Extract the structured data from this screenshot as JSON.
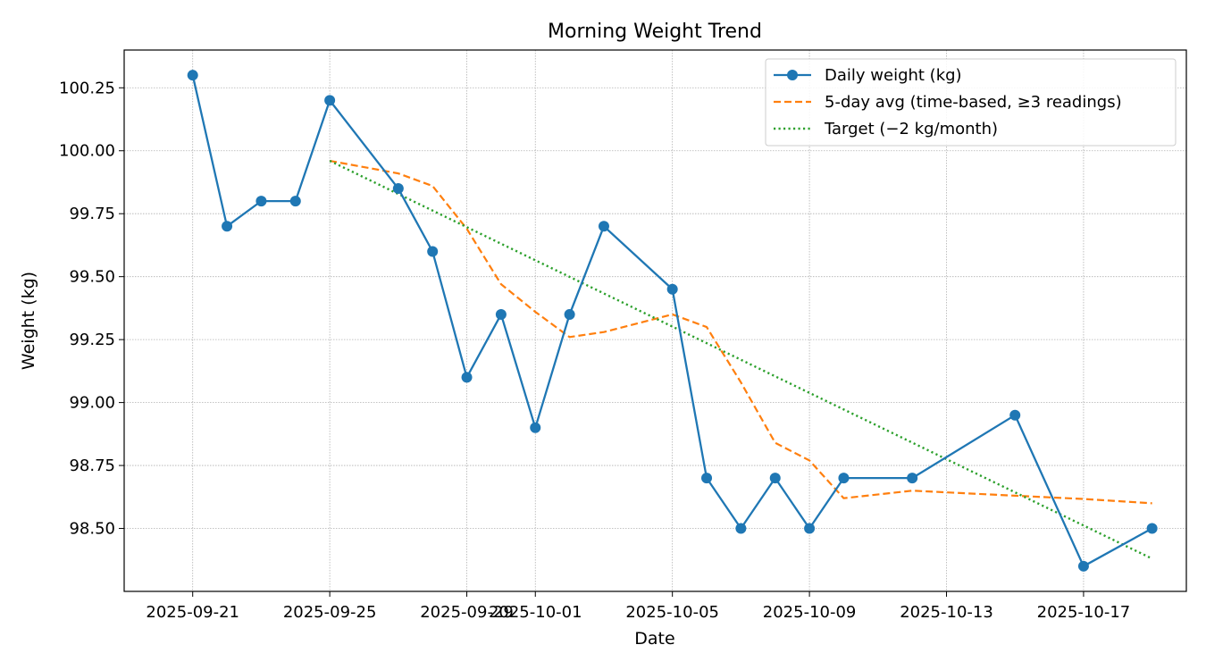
{
  "chart_data": {
    "type": "line",
    "title": "Morning Weight Trend",
    "xlabel": "Date",
    "ylabel": "Weight (kg)",
    "xlim": [
      "2025-09-19",
      "2025-10-20"
    ],
    "ylim": [
      98.25,
      100.4
    ],
    "grid": true,
    "legend_position": "top-right",
    "x_ticks": [
      "2025-09-21",
      "2025-09-25",
      "2025-09-29",
      "2025-10-01",
      "2025-10-05",
      "2025-10-09",
      "2025-10-13",
      "2025-10-17"
    ],
    "y_ticks": [
      "98.50",
      "98.75",
      "99.00",
      "99.25",
      "99.50",
      "99.75",
      "100.00",
      "100.25"
    ],
    "series": [
      {
        "name": "Daily weight (kg)",
        "color": "#1f77b4",
        "style": "solid-markers",
        "x": [
          "2025-09-21",
          "2025-09-22",
          "2025-09-23",
          "2025-09-24",
          "2025-09-25",
          "2025-09-27",
          "2025-09-28",
          "2025-09-29",
          "2025-09-30",
          "2025-10-01",
          "2025-10-02",
          "2025-10-03",
          "2025-10-05",
          "2025-10-06",
          "2025-10-07",
          "2025-10-08",
          "2025-10-09",
          "2025-10-10",
          "2025-10-12",
          "2025-10-15",
          "2025-10-17",
          "2025-10-19"
        ],
        "y": [
          100.3,
          99.7,
          99.8,
          99.8,
          100.2,
          99.85,
          99.6,
          99.1,
          99.35,
          98.9,
          99.35,
          99.7,
          99.45,
          98.7,
          98.5,
          98.7,
          98.5,
          98.7,
          98.7,
          98.95,
          98.35,
          98.5
        ]
      },
      {
        "name": "5-day avg (time-based, ≥3 readings)",
        "color": "#ff7f0e",
        "style": "dashed",
        "x": [
          "2025-09-25",
          "2025-09-27",
          "2025-09-28",
          "2025-09-29",
          "2025-09-30",
          "2025-10-01",
          "2025-10-02",
          "2025-10-03",
          "2025-10-05",
          "2025-10-06",
          "2025-10-07",
          "2025-10-08",
          "2025-10-09",
          "2025-10-10",
          "2025-10-12",
          "2025-10-15",
          "2025-10-17",
          "2025-10-19"
        ],
        "y": [
          99.96,
          99.91,
          99.86,
          99.69,
          99.47,
          99.36,
          99.26,
          99.28,
          99.35,
          99.3,
          99.08,
          98.84,
          98.77,
          98.62,
          98.65,
          98.63,
          98.617,
          98.6
        ]
      },
      {
        "name": "Target (−2 kg/month)",
        "color": "#2ca02c",
        "style": "dotted",
        "x": [
          "2025-09-25",
          "2025-10-19"
        ],
        "y": [
          99.96,
          98.38
        ]
      }
    ]
  }
}
